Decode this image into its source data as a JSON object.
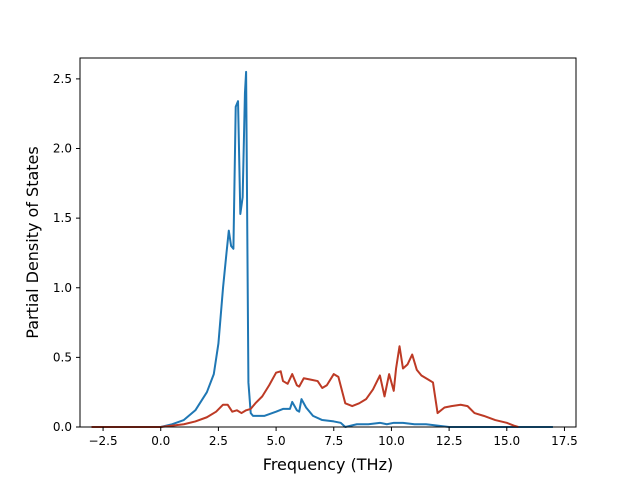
{
  "chart_data": {
    "type": "line",
    "title": "",
    "xlabel": "Frequency (THz)",
    "ylabel": "Partial Density of States",
    "xlim": [
      -3.5,
      18.0
    ],
    "ylim": [
      0.0,
      2.65
    ],
    "xticks": [
      -2.5,
      0.0,
      2.5,
      5.0,
      7.5,
      10.0,
      12.5,
      15.0,
      17.5
    ],
    "xtick_labels": [
      "−2.5",
      "0.0",
      "2.5",
      "5.0",
      "7.5",
      "10.0",
      "12.5",
      "15.0",
      "17.5"
    ],
    "yticks": [
      0.0,
      0.5,
      1.0,
      1.5,
      2.0,
      2.5
    ],
    "ytick_labels": [
      "0.0",
      "0.5",
      "1.0",
      "1.5",
      "2.0",
      "2.5"
    ],
    "grid": false,
    "legend": "none",
    "series": [
      {
        "color": "#1f77b4",
        "x": [
          -3.0,
          0.0,
          0.5,
          1.0,
          1.5,
          2.0,
          2.3,
          2.5,
          2.7,
          2.85,
          2.95,
          3.05,
          3.15,
          3.25,
          3.35,
          3.45,
          3.55,
          3.65,
          3.7,
          3.8,
          3.9,
          4.0,
          4.5,
          5.0,
          5.3,
          5.6,
          5.7,
          5.9,
          6.0,
          6.1,
          6.3,
          6.6,
          7.0,
          7.5,
          7.8,
          8.0,
          8.5,
          9.0,
          9.5,
          9.8,
          10.1,
          10.5,
          11.0,
          11.5,
          12.0,
          12.5,
          13.0,
          14.0,
          15.0,
          16.0,
          17.0
        ],
        "y": [
          0.0,
          0.0,
          0.02,
          0.05,
          0.12,
          0.25,
          0.38,
          0.6,
          1.0,
          1.25,
          1.41,
          1.3,
          1.28,
          2.3,
          2.34,
          1.53,
          1.65,
          2.4,
          2.55,
          0.32,
          0.1,
          0.08,
          0.08,
          0.11,
          0.13,
          0.13,
          0.18,
          0.12,
          0.11,
          0.2,
          0.14,
          0.08,
          0.05,
          0.04,
          0.03,
          0.0,
          0.02,
          0.02,
          0.03,
          0.02,
          0.03,
          0.03,
          0.02,
          0.02,
          0.01,
          0.0,
          0.0,
          0.0,
          0.0,
          0.0,
          0.0
        ]
      },
      {
        "color": "#bd3a25",
        "x": [
          -3.0,
          0.0,
          0.5,
          1.0,
          1.5,
          2.0,
          2.4,
          2.7,
          2.9,
          3.1,
          3.3,
          3.5,
          3.7,
          3.9,
          4.1,
          4.4,
          4.7,
          5.0,
          5.2,
          5.3,
          5.5,
          5.7,
          5.9,
          6.0,
          6.2,
          6.5,
          6.8,
          7.0,
          7.2,
          7.5,
          7.7,
          8.0,
          8.3,
          8.6,
          8.9,
          9.2,
          9.5,
          9.7,
          9.9,
          10.1,
          10.2,
          10.35,
          10.5,
          10.7,
          10.9,
          11.1,
          11.3,
          11.6,
          11.8,
          12.0,
          12.3,
          12.6,
          13.0,
          13.3,
          13.6,
          14.0,
          14.5,
          15.0,
          15.3,
          15.5
        ],
        "y": [
          0.0,
          0.0,
          0.01,
          0.02,
          0.04,
          0.07,
          0.11,
          0.16,
          0.16,
          0.11,
          0.12,
          0.1,
          0.12,
          0.13,
          0.17,
          0.22,
          0.3,
          0.39,
          0.4,
          0.33,
          0.31,
          0.38,
          0.3,
          0.29,
          0.35,
          0.34,
          0.33,
          0.28,
          0.3,
          0.38,
          0.36,
          0.17,
          0.15,
          0.17,
          0.2,
          0.27,
          0.37,
          0.22,
          0.38,
          0.26,
          0.42,
          0.58,
          0.42,
          0.45,
          0.52,
          0.41,
          0.37,
          0.34,
          0.32,
          0.1,
          0.14,
          0.15,
          0.16,
          0.15,
          0.1,
          0.08,
          0.05,
          0.03,
          0.01,
          0.0
        ]
      }
    ]
  }
}
